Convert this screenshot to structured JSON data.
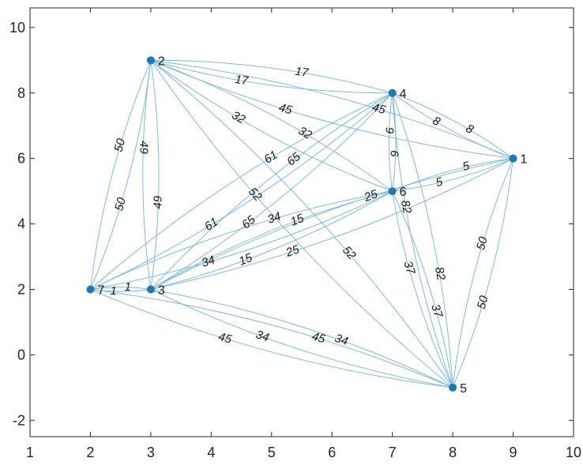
{
  "chart_data": {
    "type": "graph",
    "title": "",
    "xlabel": "",
    "ylabel": "",
    "xlim": [
      1,
      10
    ],
    "ylim": [
      -2.5,
      10.6
    ],
    "x_ticks": [
      1,
      2,
      3,
      4,
      5,
      6,
      7,
      8,
      9,
      10
    ],
    "y_ticks": [
      -2,
      0,
      2,
      4,
      6,
      8,
      10
    ],
    "grid": false,
    "directed": true,
    "colors": {
      "edge": "#7fb8e0",
      "node": "#1f77b4",
      "axis": "#262626"
    },
    "nodes": [
      {
        "id": "1",
        "x": 9,
        "y": 6
      },
      {
        "id": "2",
        "x": 3,
        "y": 9
      },
      {
        "id": "3",
        "x": 3,
        "y": 2
      },
      {
        "id": "4",
        "x": 7,
        "y": 8
      },
      {
        "id": "5",
        "x": 8,
        "y": -1
      },
      {
        "id": "6",
        "x": 7,
        "y": 5
      },
      {
        "id": "7",
        "x": 2,
        "y": 2
      }
    ],
    "edges": [
      {
        "source": "2",
        "target": "4",
        "weight": "17"
      },
      {
        "source": "4",
        "target": "2",
        "weight": "17"
      },
      {
        "source": "2",
        "target": "1",
        "weight": "45"
      },
      {
        "source": "1",
        "target": "2",
        "weight": "45"
      },
      {
        "source": "2",
        "target": "6",
        "weight": "32"
      },
      {
        "source": "6",
        "target": "2",
        "weight": "32"
      },
      {
        "source": "2",
        "target": "7",
        "weight": "50"
      },
      {
        "source": "7",
        "target": "2",
        "weight": "50"
      },
      {
        "source": "2",
        "target": "3",
        "weight": "49"
      },
      {
        "source": "3",
        "target": "2",
        "weight": "49"
      },
      {
        "source": "2",
        "target": "5",
        "weight": "52"
      },
      {
        "source": "5",
        "target": "2",
        "weight": "52"
      },
      {
        "source": "4",
        "target": "1",
        "weight": "8"
      },
      {
        "source": "1",
        "target": "4",
        "weight": "8"
      },
      {
        "source": "4",
        "target": "6",
        "weight": "9"
      },
      {
        "source": "6",
        "target": "4",
        "weight": "9"
      },
      {
        "source": "4",
        "target": "7",
        "weight": "61"
      },
      {
        "source": "7",
        "target": "4",
        "weight": "61"
      },
      {
        "source": "4",
        "target": "3",
        "weight": "65"
      },
      {
        "source": "3",
        "target": "4",
        "weight": "65"
      },
      {
        "source": "4",
        "target": "5",
        "weight": "82"
      },
      {
        "source": "5",
        "target": "4",
        "weight": "82"
      },
      {
        "source": "1",
        "target": "6",
        "weight": "5"
      },
      {
        "source": "6",
        "target": "1",
        "weight": "5"
      },
      {
        "source": "1",
        "target": "5",
        "weight": "50"
      },
      {
        "source": "5",
        "target": "1",
        "weight": "50"
      },
      {
        "source": "1",
        "target": "3",
        "weight": "25"
      },
      {
        "source": "3",
        "target": "1",
        "weight": "25"
      },
      {
        "source": "6",
        "target": "7",
        "weight": "34"
      },
      {
        "source": "7",
        "target": "6",
        "weight": "34"
      },
      {
        "source": "6",
        "target": "5",
        "weight": "37"
      },
      {
        "source": "5",
        "target": "6",
        "weight": "37"
      },
      {
        "source": "6",
        "target": "3",
        "weight": "15"
      },
      {
        "source": "3",
        "target": "6",
        "weight": "15"
      },
      {
        "source": "7",
        "target": "3",
        "weight": "1"
      },
      {
        "source": "3",
        "target": "7",
        "weight": "1"
      },
      {
        "source": "7",
        "target": "5",
        "weight": "45"
      },
      {
        "source": "5",
        "target": "7",
        "weight": "45"
      },
      {
        "source": "3",
        "target": "5",
        "weight": "34"
      },
      {
        "source": "5",
        "target": "3",
        "weight": "34"
      }
    ]
  }
}
